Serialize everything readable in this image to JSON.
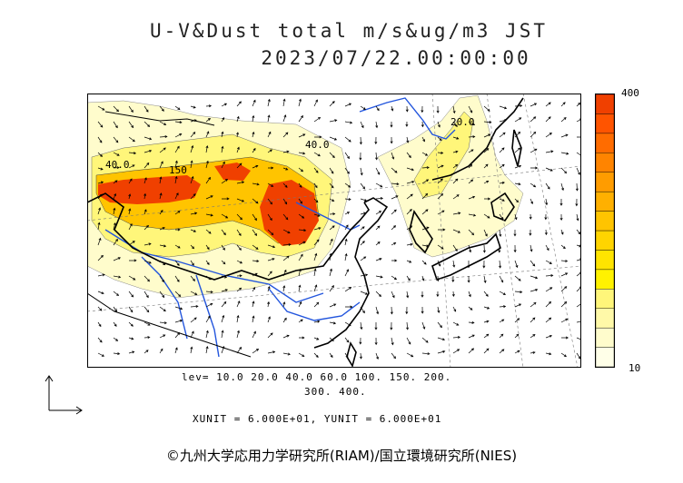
{
  "title": {
    "line1": "U-V&Dust total m/s&ug/m3 JST",
    "line2": "2023/07/22.00:00:00"
  },
  "colorbar": {
    "max_label": "400",
    "min_label": "10",
    "colors": [
      "#ffffe8",
      "#fffccc",
      "#fff9a8",
      "#fff67a",
      "#fff200",
      "#ffe400",
      "#ffd400",
      "#ffc400",
      "#ffb000",
      "#ff9c00",
      "#ff8400",
      "#ff6c00",
      "#ff5400",
      "#f04000"
    ]
  },
  "contour_levels": {
    "line1": "lev= 10.0 20.0 40.0 60.0 100. 150. 200.",
    "line2": "300. 400."
  },
  "vector_units": "XUNIT = 6.000E+01, YUNIT = 6.000E+01",
  "copyright": "©九州大学応用力学研究所(RIAM)/国立環境研究所(NIES)",
  "map_labels": [
    {
      "text": "40.0"
    },
    {
      "text": "150"
    },
    {
      "text": "40.0"
    },
    {
      "text": "20.0"
    }
  ],
  "map_colors": {
    "land_low": "#fffccc",
    "land_mid": "#fff67a",
    "land_high": "#ffc400",
    "peak": "#f04000",
    "river": "#2255dd",
    "coast": "#000000",
    "vector": "#000000"
  }
}
